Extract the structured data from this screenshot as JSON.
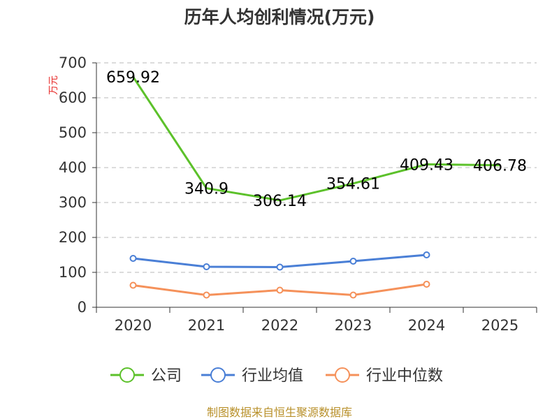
{
  "chart_data": {
    "type": "line",
    "title": "历年人均创利情况(万元)",
    "ylabel": "万元",
    "xlabel": "",
    "categories": [
      "2020",
      "2021",
      "2022",
      "2023",
      "2024",
      "2025"
    ],
    "ylim": [
      0,
      700
    ],
    "yticks": [
      "0",
      "100",
      "200",
      "300",
      "400",
      "500",
      "600",
      "700"
    ],
    "grid": true,
    "legend_position": "bottom",
    "series": [
      {
        "name": "公司",
        "color": "#5cc12a",
        "values": [
          659.92,
          340.9,
          306.14,
          354.61,
          409.43,
          406.78
        ],
        "labels": [
          "659.92",
          "340.9",
          "306.14",
          "354.61",
          "409.43",
          "406.78"
        ],
        "markers": [
          false,
          false,
          false,
          false,
          false,
          false
        ]
      },
      {
        "name": "行业均值",
        "color": "#4a7fd6",
        "values": [
          140,
          116,
          115,
          132,
          150,
          null
        ],
        "markers": [
          true,
          true,
          true,
          true,
          true,
          false
        ]
      },
      {
        "name": "行业中位数",
        "color": "#f5915a",
        "values": [
          63,
          35,
          49,
          35,
          66,
          null
        ],
        "markers": [
          true,
          true,
          true,
          true,
          true,
          false
        ]
      }
    ]
  },
  "footer": {
    "source": "制图数据来自恒生聚源数据库"
  }
}
